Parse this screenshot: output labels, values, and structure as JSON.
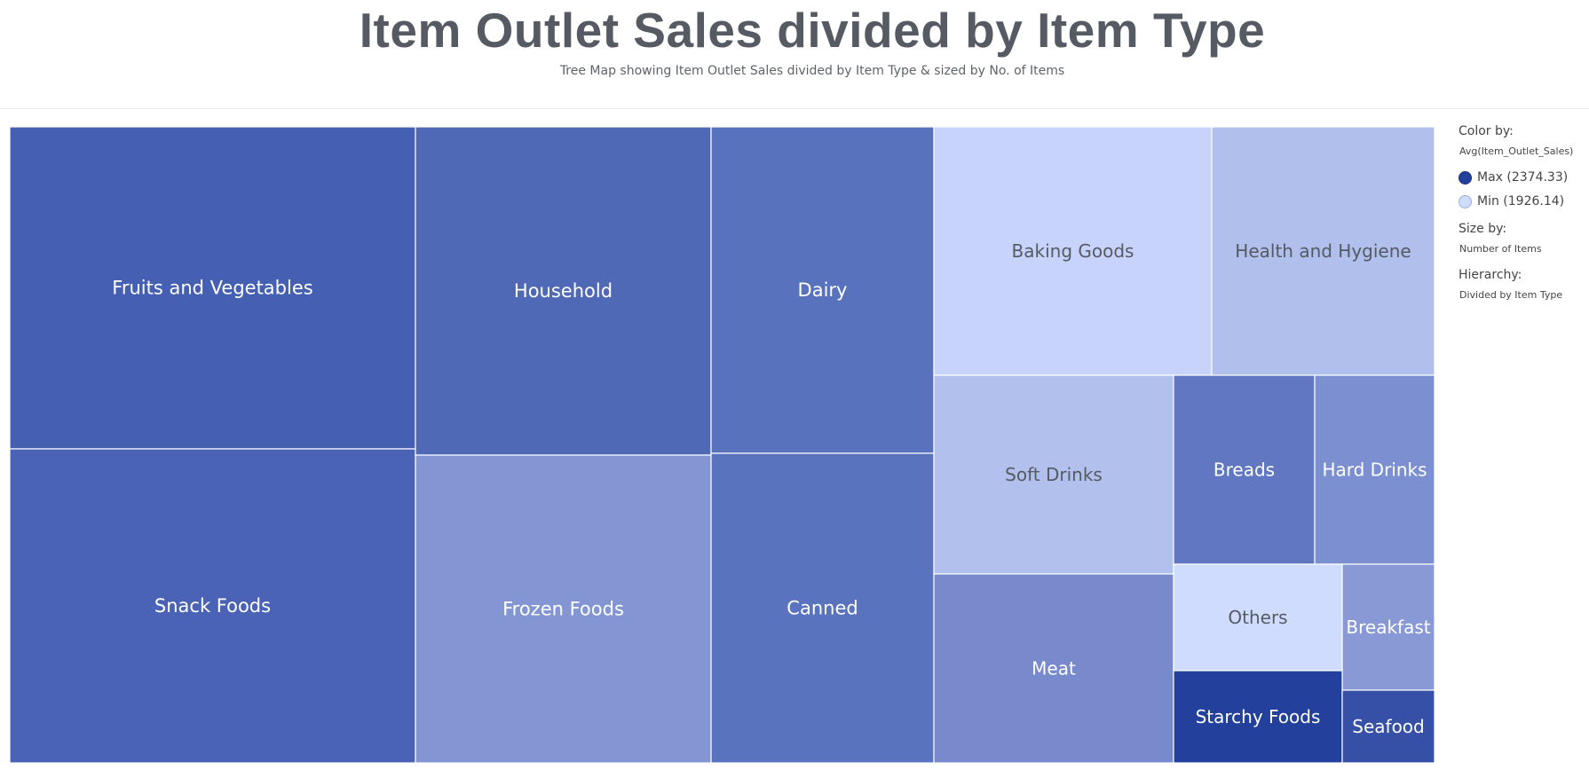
{
  "chart_data": {
    "type": "treemap",
    "title": "Item Outlet Sales divided by Item Type",
    "subtitle": "Tree Map showing Item Outlet Sales divided by Item Type & sized by No. of Items",
    "tiles": [
      {
        "label": "Fruits and Vegetables",
        "color": "#4560b3"
      },
      {
        "label": "Snack Foods",
        "color": "#4a63b6"
      },
      {
        "label": "Household",
        "color": "#4f69b7"
      },
      {
        "label": "Frozen Foods",
        "color": "#8396d3"
      },
      {
        "label": "Dairy",
        "color": "#5872be"
      },
      {
        "label": "Canned",
        "color": "#5a73bf"
      },
      {
        "label": "Baking Goods",
        "color": "#c7d3fa"
      },
      {
        "label": "Health and Hygiene",
        "color": "#b0bfec"
      },
      {
        "label": "Soft Drinks",
        "color": "#b2c0ed"
      },
      {
        "label": "Breads",
        "color": "#6177c2"
      },
      {
        "label": "Hard Drinks",
        "color": "#7c90d1"
      },
      {
        "label": "Meat",
        "color": "#7889cc"
      },
      {
        "label": "Others",
        "color": "#d0dcfd"
      },
      {
        "label": "Breakfast",
        "color": "#8899d6"
      },
      {
        "label": "Starchy Foods",
        "color": "#22409c"
      },
      {
        "label": "Seafood",
        "color": "#3650a8"
      }
    ]
  },
  "legend": {
    "color_by_label": "Color by:",
    "color_by_value": "Avg(Item_Outlet_Sales)",
    "max_label": "Max (2374.33)",
    "max_color": "#22409c",
    "min_label": "Min (1926.14)",
    "min_color": "#d0dcfd",
    "size_by_label": "Size by:",
    "size_by_value": "Number of Items",
    "hierarchy_label": "Hierarchy:",
    "hierarchy_value": "Divided by Item Type"
  }
}
